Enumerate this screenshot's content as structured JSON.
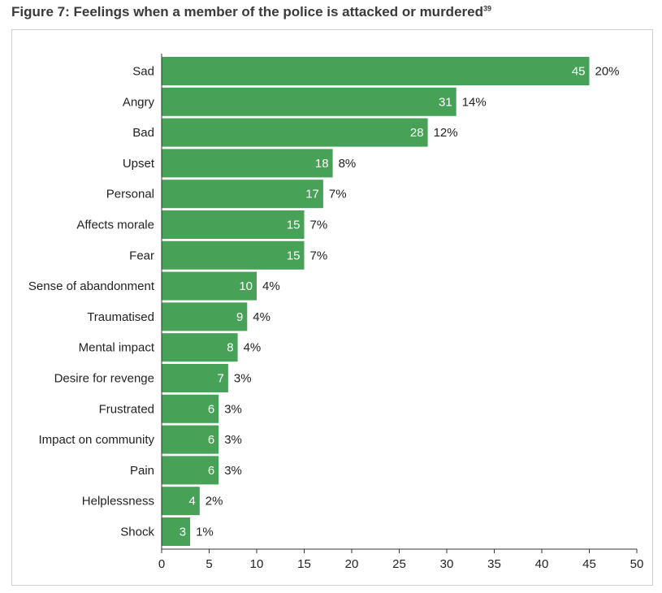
{
  "figure": {
    "title": "Figure 7: Feelings when a member of the police is attacked or murdered",
    "footnote": "39"
  },
  "colors": {
    "bar": "#47a156",
    "axis": "#333333",
    "frame": "#cfcfcf"
  },
  "chart_data": {
    "type": "bar",
    "orientation": "horizontal",
    "title": "Figure 7: Feelings when a member of the police is attacked or murdered",
    "xlabel": "",
    "ylabel": "",
    "xlim": [
      0,
      50
    ],
    "xticks": [
      0,
      5,
      10,
      15,
      20,
      25,
      30,
      35,
      40,
      45,
      50
    ],
    "grid": false,
    "categories": [
      "Sad",
      "Angry",
      "Bad",
      "Upset",
      "Personal",
      "Affects morale",
      "Fear",
      "Sense of abandonment",
      "Traumatised",
      "Mental impact",
      "Desire for revenge",
      "Frustrated",
      "Impact on community",
      "Pain",
      "Helplessness",
      "Shock"
    ],
    "values": [
      45,
      31,
      28,
      18,
      17,
      15,
      15,
      10,
      9,
      8,
      7,
      6,
      6,
      6,
      4,
      3
    ],
    "value_labels": [
      "45",
      "31",
      "28",
      "18",
      "17",
      "15",
      "15",
      "10",
      "9",
      "8",
      "7",
      "6",
      "6",
      "6",
      "4",
      "3"
    ],
    "percent_labels": [
      "20%",
      "14%",
      "12%",
      "8%",
      "7%",
      "7%",
      "7%",
      "4%",
      "4%",
      "4%",
      "3%",
      "3%",
      "3%",
      "3%",
      "2%",
      "1%"
    ],
    "tick_labels": [
      "0",
      "5",
      "10",
      "15",
      "20",
      "25",
      "30",
      "35",
      "40",
      "45",
      "50"
    ]
  }
}
